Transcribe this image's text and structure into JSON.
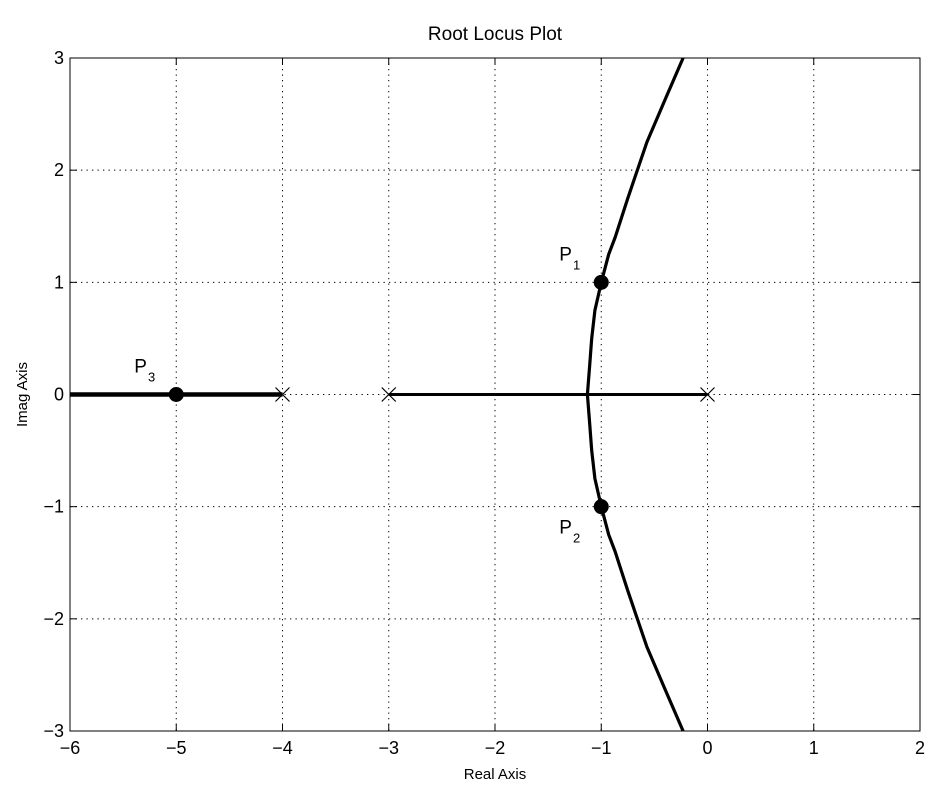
{
  "chart_data": {
    "type": "line",
    "title": "Root Locus Plot",
    "xlabel": "Real Axis",
    "ylabel": "Imag Axis",
    "xlim": [
      -6,
      2
    ],
    "ylim": [
      -3,
      3
    ],
    "grid": true,
    "x_ticks": [
      -6,
      -5,
      -4,
      -3,
      -2,
      -1,
      0,
      1,
      2
    ],
    "y_ticks": [
      -3,
      -2,
      -1,
      0,
      1,
      2,
      3
    ],
    "x_tick_labels": [
      "−6",
      "−5",
      "−4",
      "−3",
      "−2",
      "−1",
      "0",
      "1",
      "2"
    ],
    "y_tick_labels": [
      "−3",
      "−2",
      "−1",
      "0",
      "1",
      "2",
      "3"
    ],
    "series": [
      {
        "points": [
          [
            -6,
            0
          ],
          [
            -4,
            0
          ]
        ]
      },
      {
        "points": [
          [
            -3,
            0
          ],
          [
            0,
            0
          ]
        ]
      },
      {
        "points": [
          [
            -1.13,
            0
          ],
          [
            -1.11,
            0.25
          ],
          [
            -1.09,
            0.5
          ],
          [
            -1.06,
            0.75
          ],
          [
            -1.0,
            1.0
          ],
          [
            -0.93,
            1.25
          ],
          [
            -0.87,
            1.4
          ],
          [
            -0.75,
            1.75
          ],
          [
            -0.57,
            2.25
          ],
          [
            -0.39,
            2.65
          ],
          [
            -0.23,
            3.0
          ]
        ]
      },
      {
        "points": [
          [
            -1.13,
            0
          ],
          [
            -1.11,
            -0.25
          ],
          [
            -1.09,
            -0.5
          ],
          [
            -1.06,
            -0.75
          ],
          [
            -1.0,
            -1.0
          ],
          [
            -0.93,
            -1.25
          ],
          [
            -0.87,
            -1.4
          ],
          [
            -0.75,
            -1.75
          ],
          [
            -0.57,
            -2.25
          ],
          [
            -0.39,
            -2.65
          ],
          [
            -0.23,
            -3.0
          ]
        ]
      }
    ],
    "poles": [
      [
        -4,
        0
      ],
      [
        -3,
        0
      ],
      [
        0,
        0
      ]
    ],
    "marked_points": [
      {
        "label": "P",
        "sub": "1",
        "x": -1,
        "y": 1
      },
      {
        "label": "P",
        "sub": "2",
        "x": -1,
        "y": -1
      },
      {
        "label": "P",
        "sub": "3",
        "x": -5,
        "y": 0
      }
    ]
  }
}
